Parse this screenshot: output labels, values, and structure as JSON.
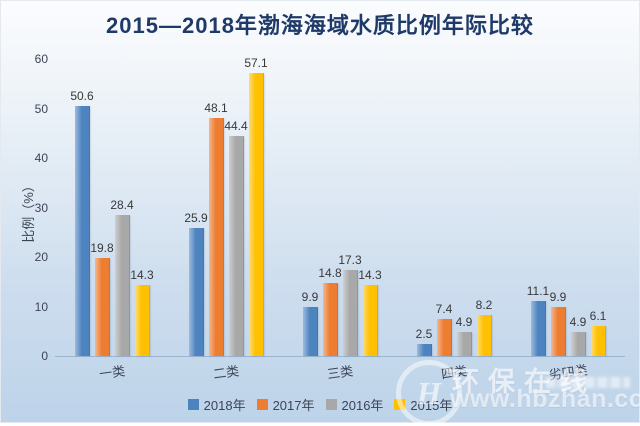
{
  "title": "2015—2018年渤海海域水质比例年际比较",
  "chart_data": {
    "type": "bar",
    "title": "2015—2018年渤海海域水质比例年际比较",
    "xlabel": "",
    "ylabel": "比例（%）",
    "ylim": [
      0,
      60
    ],
    "yticks": [
      0,
      10,
      20,
      30,
      40,
      50,
      60
    ],
    "grid": false,
    "data_labels": true,
    "legend_position": "bottom",
    "categories": [
      "一类",
      "二类",
      "三类",
      "四类",
      "劣四类"
    ],
    "series": [
      {
        "name": "2018年",
        "color": "#4d84c0",
        "values": [
          50.6,
          25.9,
          9.9,
          2.5,
          11.1
        ]
      },
      {
        "name": "2017年",
        "color": "#ed7d31",
        "values": [
          19.8,
          48.1,
          14.8,
          7.4,
          9.9
        ]
      },
      {
        "name": "2016年",
        "color": "#a8a8a8",
        "values": [
          28.4,
          44.4,
          17.3,
          4.9,
          4.9
        ]
      },
      {
        "name": "2015年",
        "color": "#fec000",
        "values": [
          14.3,
          57.1,
          14.3,
          8.2,
          6.1
        ]
      }
    ]
  },
  "watermark": {
    "brand": "环保在线",
    "url": "www.hbzhan.com",
    "logo_letter": "H"
  }
}
